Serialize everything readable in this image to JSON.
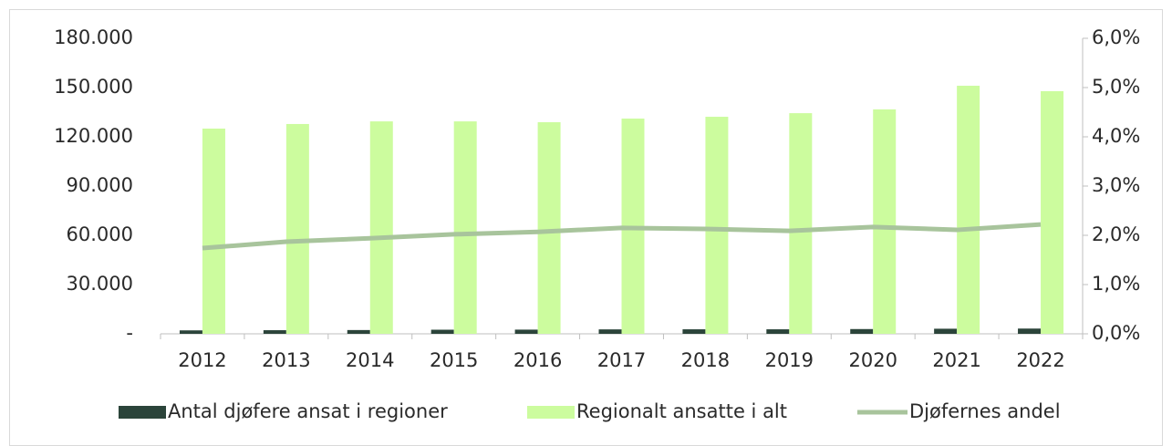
{
  "chart_data": {
    "type": "bar-line",
    "categories": [
      "2012",
      "2013",
      "2014",
      "2015",
      "2016",
      "2017",
      "2018",
      "2019",
      "2020",
      "2021",
      "2022"
    ],
    "series": [
      {
        "name": "Antal djøfere ansat i regioner",
        "type": "bar",
        "color": "#2b443a",
        "values": [
          2100,
          2200,
          2300,
          2500,
          2550,
          2700,
          2750,
          2750,
          2900,
          3100,
          3200
        ]
      },
      {
        "name": "Regionalt ansatte i alt",
        "type": "bar",
        "color": "#ccfc9e",
        "values": [
          125000,
          127800,
          129400,
          129400,
          128900,
          131100,
          132200,
          134400,
          136700,
          151100,
          147800
        ]
      },
      {
        "name": "Djøfernes andel",
        "type": "line",
        "axis": "y2",
        "color": "#a8c49c",
        "values": [
          1.74,
          1.87,
          1.94,
          2.02,
          2.07,
          2.15,
          2.13,
          2.09,
          2.17,
          2.11,
          2.22
        ]
      }
    ],
    "ylim": [
      0,
      180000
    ],
    "yticks": [
      {
        "value": 0,
        "label": "-"
      },
      {
        "value": 30000,
        "label": "30.000"
      },
      {
        "value": 60000,
        "label": "60.000"
      },
      {
        "value": 90000,
        "label": "90.000"
      },
      {
        "value": 120000,
        "label": "120.000"
      },
      {
        "value": 150000,
        "label": "150.000"
      },
      {
        "value": 180000,
        "label": "180.000"
      }
    ],
    "y2lim": [
      0,
      6
    ],
    "y2ticks": [
      {
        "value": 0,
        "label": "0,0%"
      },
      {
        "value": 1,
        "label": "1,0%"
      },
      {
        "value": 2,
        "label": "2,0%"
      },
      {
        "value": 3,
        "label": "3,0%"
      },
      {
        "value": 4,
        "label": "4,0%"
      },
      {
        "value": 5,
        "label": "5,0%"
      },
      {
        "value": 6,
        "label": "6,0%"
      }
    ],
    "grid": false,
    "legend": "bottom"
  }
}
